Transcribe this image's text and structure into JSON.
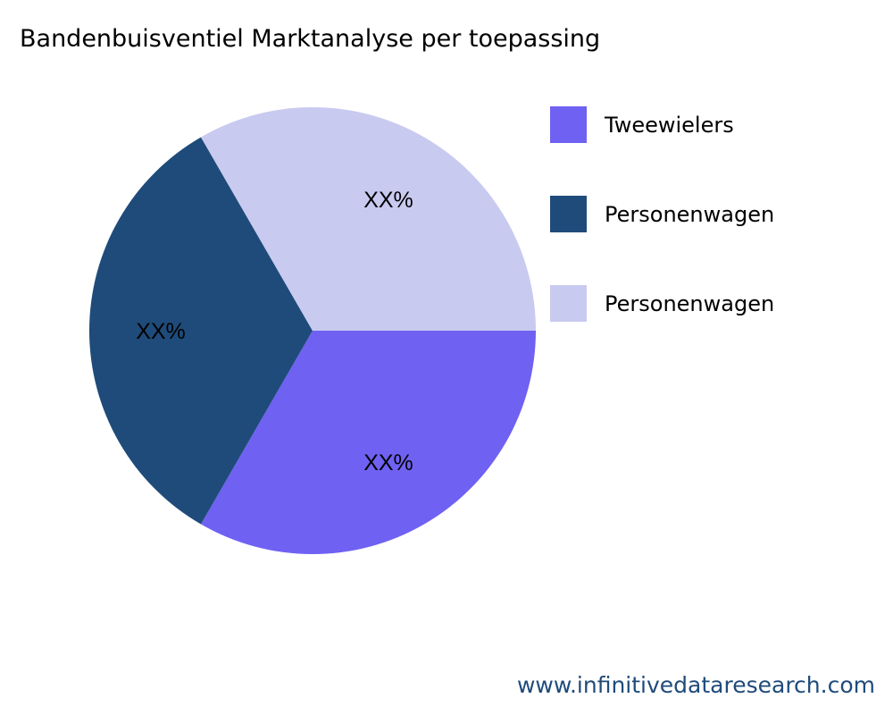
{
  "chart_data": {
    "type": "pie",
    "title": "Bandenbuisventiel Marktanalyse per toepassing",
    "slices": [
      {
        "label": "Tweewielers",
        "value": 1,
        "display": "XX%",
        "color": "#6f61f2"
      },
      {
        "label": "Personenwagen",
        "value": 1,
        "display": "XX%",
        "color": "#1f4b7a"
      },
      {
        "label": "Personenwagen",
        "value": 1,
        "display": "XX%",
        "color": "#c9caf0"
      }
    ],
    "legend_position": "right"
  },
  "watermark": "www.infinitivedataresearch.com"
}
